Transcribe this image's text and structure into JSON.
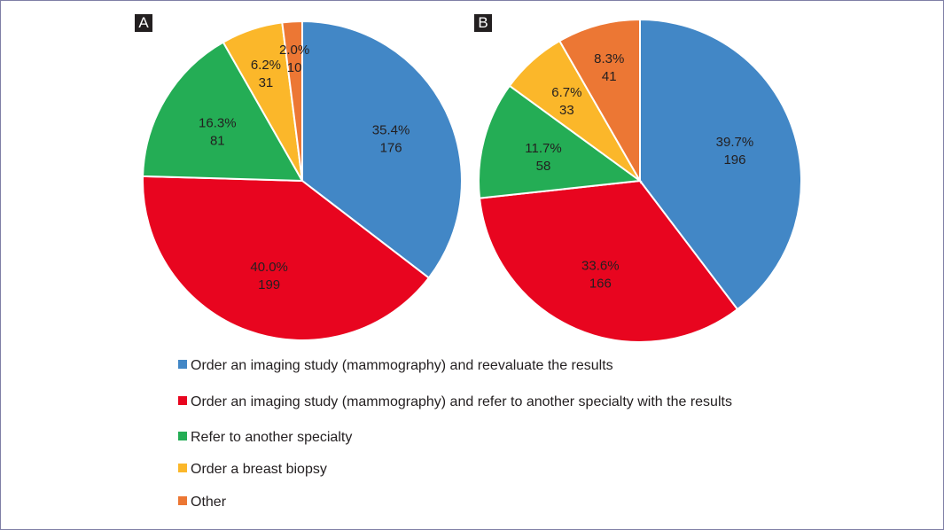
{
  "chart_data": [
    {
      "type": "pie",
      "panel_label": "A",
      "categories": [
        "Order an imaging study (mammography) and reevaluate the results",
        "Order an imaging study (mammography) and refer to another specialty with the results",
        "Refer to another specialty",
        "Order a breast biopsy",
        "Other"
      ],
      "values": [
        176,
        199,
        81,
        31,
        10
      ],
      "percent_labels": [
        "35.4%",
        "40.0%",
        "16.3%",
        "6.2%",
        "2.0%"
      ],
      "count_labels": [
        "176",
        "199",
        "81",
        "31",
        "10"
      ],
      "start": "top",
      "direction": "clockwise"
    },
    {
      "type": "pie",
      "panel_label": "B",
      "categories": [
        "Order an imaging study (mammography) and reevaluate the results",
        "Order an imaging study (mammography) and refer to another specialty with the results",
        "Refer to another specialty",
        "Order a breast biopsy",
        "Other"
      ],
      "values": [
        196,
        166,
        58,
        33,
        41
      ],
      "percent_labels": [
        "39.7%",
        "33.6%",
        "11.7%",
        "6.7%",
        "8.3%"
      ],
      "count_labels": [
        "196",
        "166",
        "58",
        "33",
        "41"
      ],
      "start": "top",
      "direction": "clockwise"
    }
  ],
  "legend": {
    "placement": "bottom",
    "items": [
      {
        "label": "Order an imaging study (mammography) and reevaluate the results",
        "color": "#4287c6"
      },
      {
        "label": "Order an imaging study (mammography) and refer to another specialty with the results",
        "color": "#e8051f"
      },
      {
        "label": "Refer to another specialty",
        "color": "#24ad55"
      },
      {
        "label": "Order a breast biopsy",
        "color": "#fbb72a"
      },
      {
        "label": "Other",
        "color": "#ec7734"
      }
    ]
  }
}
